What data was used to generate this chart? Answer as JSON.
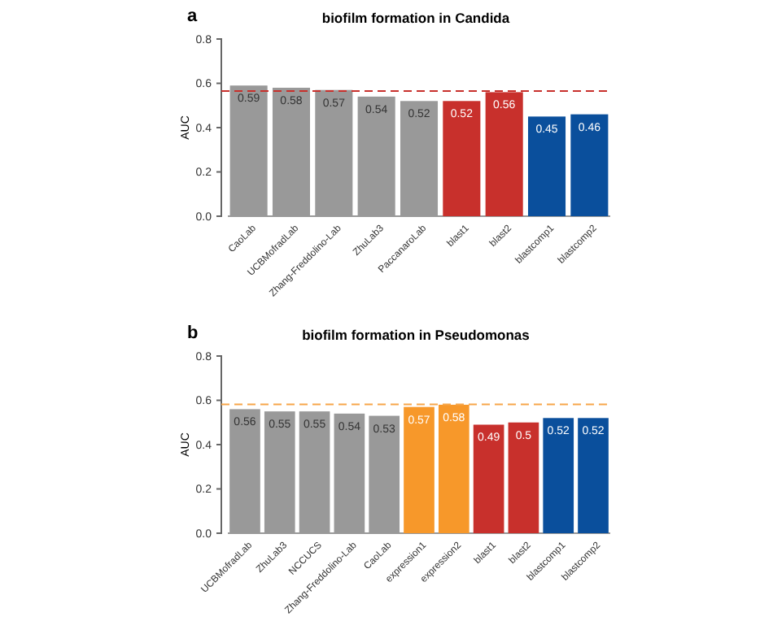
{
  "chart_data": [
    {
      "type": "bar",
      "title": "biofilm formation in Candida",
      "ylabel": "AUC",
      "annotations": [
        "a"
      ],
      "categories": [
        "CaoLab",
        "UCBMofradLab",
        "Zhang-Freddolino-Lab",
        "ZhuLab3",
        "PaccanaroLab",
        "blast1",
        "blast2",
        "blastcomp1",
        "blastcomp2"
      ],
      "values": [
        0.59,
        0.58,
        0.57,
        0.54,
        0.52,
        0.52,
        0.56,
        0.45,
        0.46
      ],
      "colors": [
        "#999999",
        "#999999",
        "#999999",
        "#999999",
        "#999999",
        "#c8302c",
        "#c8302c",
        "#0a4f9c",
        "#0a4f9c"
      ],
      "data_labels": true,
      "ylim": [
        0,
        0.8
      ],
      "yticks": [
        {
          "value": 0,
          "label": "0.0"
        },
        0.2,
        0.4,
        0.6,
        0.8
      ],
      "grid": false,
      "ref_lines": [
        {
          "axis": "y",
          "value": 0.565,
          "color": "#c8302c",
          "line_style": "dashed"
        }
      ]
    },
    {
      "type": "bar",
      "title": "biofilm formation in Pseudomonas",
      "ylabel": "AUC",
      "annotations": [
        "b"
      ],
      "categories": [
        "UCBMofradLab",
        "ZhuLab3",
        "NCCUCS",
        "Zhang-Freddolino-Lab",
        "CaoLab",
        "expression1",
        "expression2",
        "blast1",
        "blast2",
        "blastcomp1",
        "blastcomp2"
      ],
      "values": [
        0.56,
        0.55,
        0.55,
        0.54,
        0.53,
        0.57,
        0.58,
        0.49,
        0.5,
        0.52,
        0.52
      ],
      "colors": [
        "#999999",
        "#999999",
        "#999999",
        "#999999",
        "#999999",
        "#f7982a",
        "#f7982a",
        "#c8302c",
        "#c8302c",
        "#0a4f9c",
        "#0a4f9c"
      ],
      "data_labels": true,
      "ylim": [
        0,
        0.8
      ],
      "yticks": [
        {
          "value": 0,
          "label": "0.0"
        },
        0.2,
        0.4,
        0.6,
        0.8
      ],
      "grid": false,
      "ref_lines": [
        {
          "axis": "y",
          "value": 0.582,
          "color": "#f7a64a",
          "line_style": "dashed"
        }
      ]
    }
  ]
}
